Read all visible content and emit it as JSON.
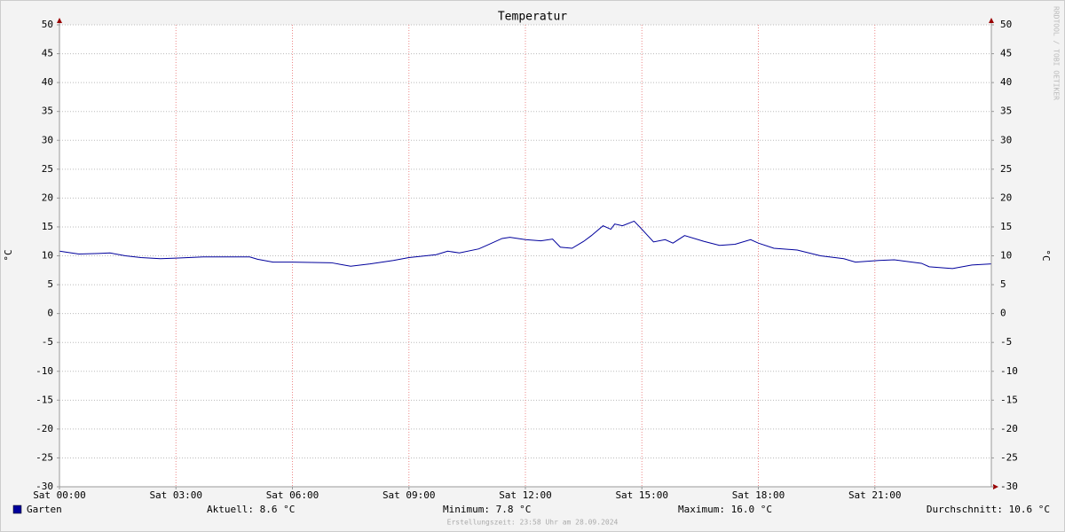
{
  "chart_data": {
    "type": "line",
    "title": "Temperatur",
    "ylabel": "°C",
    "x": [
      0,
      0.5,
      1,
      1.3,
      1.7,
      2.1,
      2.6,
      3,
      3.7,
      4.9,
      5.1,
      5.5,
      6,
      7,
      7.5,
      8,
      8.6,
      9,
      9.7,
      10,
      10.3,
      10.8,
      11,
      11.4,
      11.6,
      12,
      12.4,
      12.7,
      12.9,
      13.2,
      13.5,
      13.7,
      14,
      14.2,
      14.3,
      14.5,
      14.8,
      15,
      15.3,
      15.6,
      15.8,
      16.1,
      16.6,
      17,
      17.4,
      17.8,
      18,
      18.4,
      19,
      19.6,
      20.2,
      20.5,
      21.1,
      21.5,
      22.2,
      22.4,
      23,
      23.5,
      24
    ],
    "series": [
      {
        "name": "Garten",
        "color": "#00009c",
        "values": [
          10.8,
          10.3,
          10.4,
          10.5,
          10.0,
          9.7,
          9.5,
          9.6,
          9.8,
          9.8,
          9.4,
          8.9,
          8.9,
          8.8,
          8.2,
          8.6,
          9.2,
          9.7,
          10.2,
          10.8,
          10.5,
          11.2,
          11.8,
          13.0,
          13.2,
          12.8,
          12.6,
          12.9,
          11.5,
          11.3,
          12.5,
          13.5,
          15.2,
          14.6,
          15.5,
          15.2,
          16.0,
          14.6,
          12.4,
          12.8,
          12.2,
          13.5,
          12.5,
          11.8,
          12.0,
          12.8,
          12.2,
          11.3,
          11.0,
          10.0,
          9.5,
          8.9,
          9.2,
          9.3,
          8.7,
          8.1,
          7.8,
          8.4,
          8.6
        ]
      }
    ],
    "xlim": [
      0,
      24
    ],
    "xticks": [
      {
        "value": 0,
        "label": "Sat 00:00"
      },
      {
        "value": 3,
        "label": "Sat 03:00"
      },
      {
        "value": 6,
        "label": "Sat 06:00"
      },
      {
        "value": 9,
        "label": "Sat 09:00"
      },
      {
        "value": 12,
        "label": "Sat 12:00"
      },
      {
        "value": 15,
        "label": "Sat 15:00"
      },
      {
        "value": 18,
        "label": "Sat 18:00"
      },
      {
        "value": 21,
        "label": "Sat 21:00"
      }
    ],
    "ylim": [
      -30,
      50
    ],
    "yticks": [
      -30,
      -25,
      -20,
      -15,
      -10,
      -5,
      0,
      5,
      10,
      15,
      20,
      25,
      30,
      35,
      40,
      45,
      50
    ],
    "grid": true,
    "stats": [
      "Aktuell: 8.6 °C",
      "Minimum: 7.8 °C",
      "Maximum: 16.0 °C",
      "Durchschnitt: 10.6 °C"
    ],
    "footer": "Erstellungszeit: 23:58 Uhr am 28.09.2024",
    "watermark": "RRDTOOL / TOBI OETIKER"
  }
}
